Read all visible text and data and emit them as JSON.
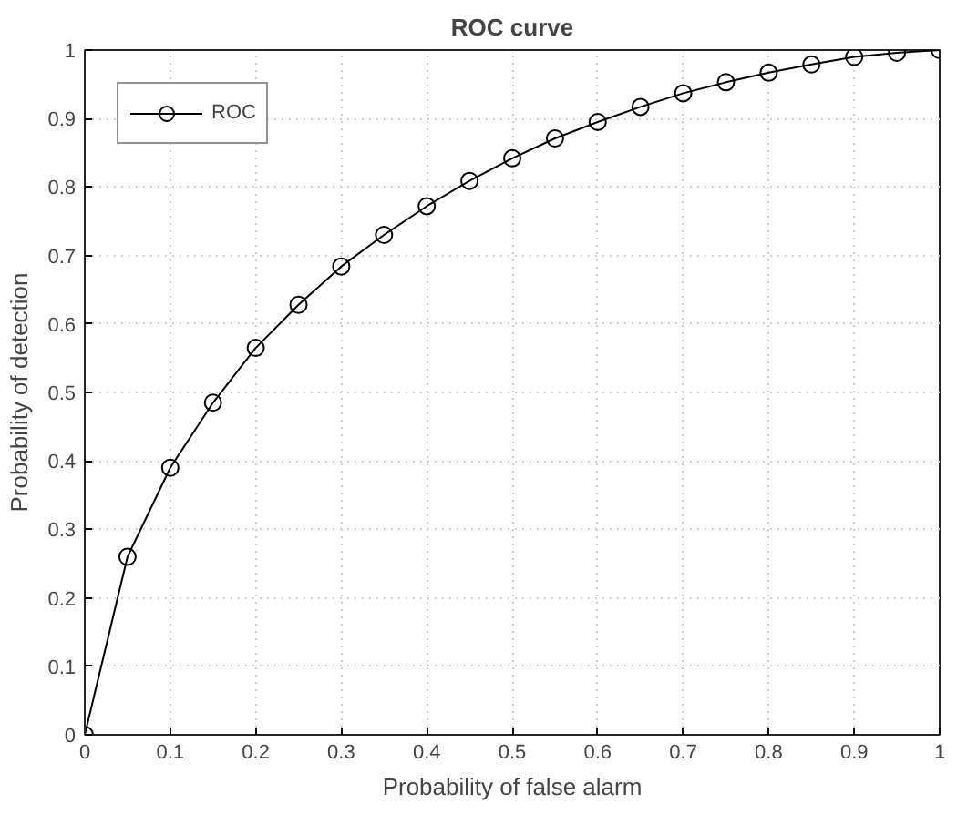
{
  "chart_data": {
    "type": "line",
    "title": "ROC curve",
    "xlabel": "Probability of false alarm",
    "ylabel": "Probability of detection",
    "x": [
      0,
      0.05,
      0.1,
      0.15,
      0.2,
      0.25,
      0.3,
      0.35,
      0.4,
      0.45,
      0.5,
      0.55,
      0.6,
      0.65,
      0.7,
      0.75,
      0.8,
      0.85,
      0.9,
      0.95,
      1
    ],
    "series": [
      {
        "name": "ROC",
        "color": "#000000",
        "values": [
          0,
          0.26,
          0.39,
          0.485,
          0.565,
          0.628,
          0.684,
          0.73,
          0.772,
          0.809,
          0.842,
          0.871,
          0.895,
          0.917,
          0.937,
          0.953,
          0.967,
          0.979,
          0.99,
          0.996,
          1
        ]
      }
    ],
    "xlim": [
      0,
      1
    ],
    "ylim": [
      0,
      1
    ],
    "xticks": [
      0,
      0.1,
      0.2,
      0.3,
      0.4,
      0.5,
      0.6,
      0.7,
      0.8,
      0.9,
      1
    ],
    "yticks": [
      0,
      0.1,
      0.2,
      0.3,
      0.4,
      0.5,
      0.6,
      0.7,
      0.8,
      0.9,
      1
    ],
    "grid": true,
    "legend": "top left",
    "marker": "circle",
    "line_style": "solid"
  }
}
